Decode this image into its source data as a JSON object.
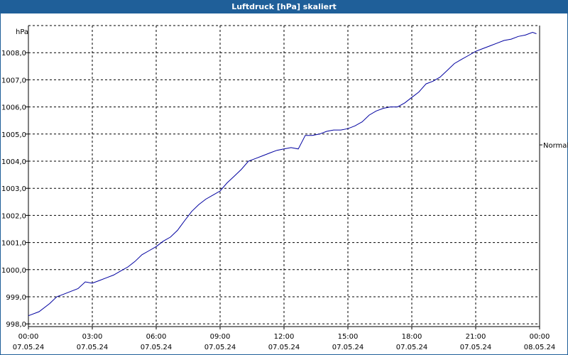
{
  "window": {
    "title": "Luftdruck [hPa] skaliert"
  },
  "colors": {
    "title_bar": "#1f5f99",
    "series_line": "#0000a0",
    "grid": "#000000"
  },
  "chart_data": {
    "type": "line",
    "title": "Luftdruck [hPa] skaliert",
    "unit_label": "hPa",
    "grid": true,
    "grid_style": "dashed",
    "ylim": [
      997.9,
      1009.0
    ],
    "y_ticks": [
      998.0,
      999.0,
      1000.0,
      1001.0,
      1002.0,
      1003.0,
      1004.0,
      1005.0,
      1006.0,
      1007.0,
      1008.0
    ],
    "y_tick_labels": [
      "998,0",
      "999,0",
      "1000,0",
      "1001,0",
      "1002,0",
      "1003,0",
      "1004,0",
      "1005,0",
      "1006,0",
      "1007,0",
      "1008,0"
    ],
    "xlim": [
      0,
      24
    ],
    "x_ticks": [
      0,
      3,
      6,
      9,
      12,
      15,
      18,
      21,
      24
    ],
    "x_tick_labels": [
      {
        "time": "00:00",
        "date": "07.05.24"
      },
      {
        "time": "03:00",
        "date": "07.05.24"
      },
      {
        "time": "06:00",
        "date": "07.05.24"
      },
      {
        "time": "09:00",
        "date": "07.05.24"
      },
      {
        "time": "12:00",
        "date": "07.05.24"
      },
      {
        "time": "15:00",
        "date": "07.05.24"
      },
      {
        "time": "18:00",
        "date": "07.05.24"
      },
      {
        "time": "21:00",
        "date": "07.05.24"
      },
      {
        "time": "00:00",
        "date": "08.05.24"
      }
    ],
    "reference_line": {
      "label": "Normal",
      "value": 1004.6
    },
    "series": [
      {
        "x": [
          0.0,
          0.5,
          1.0,
          1.33,
          1.67,
          2.0,
          2.33,
          2.67,
          3.0,
          3.33,
          3.67,
          4.0,
          4.33,
          4.67,
          5.0,
          5.33,
          5.67,
          6.0,
          6.33,
          6.67,
          7.0,
          7.33,
          7.67,
          8.0,
          8.33,
          8.67,
          9.0,
          9.33,
          9.67,
          10.0,
          10.33,
          10.67,
          11.0,
          11.33,
          11.67,
          12.0,
          12.33,
          12.67,
          13.0,
          13.33,
          13.67,
          14.0,
          14.33,
          14.67,
          15.0,
          15.33,
          15.67,
          16.0,
          16.33,
          16.67,
          17.0,
          17.33,
          17.67,
          18.0,
          18.33,
          18.67,
          19.0,
          19.33,
          19.67,
          20.0,
          20.33,
          20.67,
          21.0,
          21.33,
          21.67,
          22.0,
          22.33,
          22.67,
          23.0,
          23.33,
          23.67,
          23.85
        ],
        "y": [
          998.3,
          998.45,
          998.75,
          999.0,
          999.1,
          999.2,
          999.3,
          999.55,
          999.5,
          999.6,
          999.7,
          999.8,
          999.95,
          1000.1,
          1000.3,
          1000.55,
          1000.7,
          1000.85,
          1001.05,
          1001.2,
          1001.45,
          1001.8,
          1002.15,
          1002.4,
          1002.6,
          1002.75,
          1002.9,
          1003.2,
          1003.45,
          1003.7,
          1004.0,
          1004.1,
          1004.2,
          1004.3,
          1004.4,
          1004.45,
          1004.5,
          1004.45,
          1004.95,
          1004.95,
          1005.0,
          1005.1,
          1005.15,
          1005.15,
          1005.2,
          1005.3,
          1005.45,
          1005.7,
          1005.85,
          1005.95,
          1006.0,
          1006.0,
          1006.15,
          1006.35,
          1006.55,
          1006.85,
          1006.95,
          1007.1,
          1007.35,
          1007.6,
          1007.75,
          1007.9,
          1008.05,
          1008.15,
          1008.25,
          1008.35,
          1008.45,
          1008.5,
          1008.6,
          1008.65,
          1008.75,
          1008.7
        ]
      }
    ]
  }
}
